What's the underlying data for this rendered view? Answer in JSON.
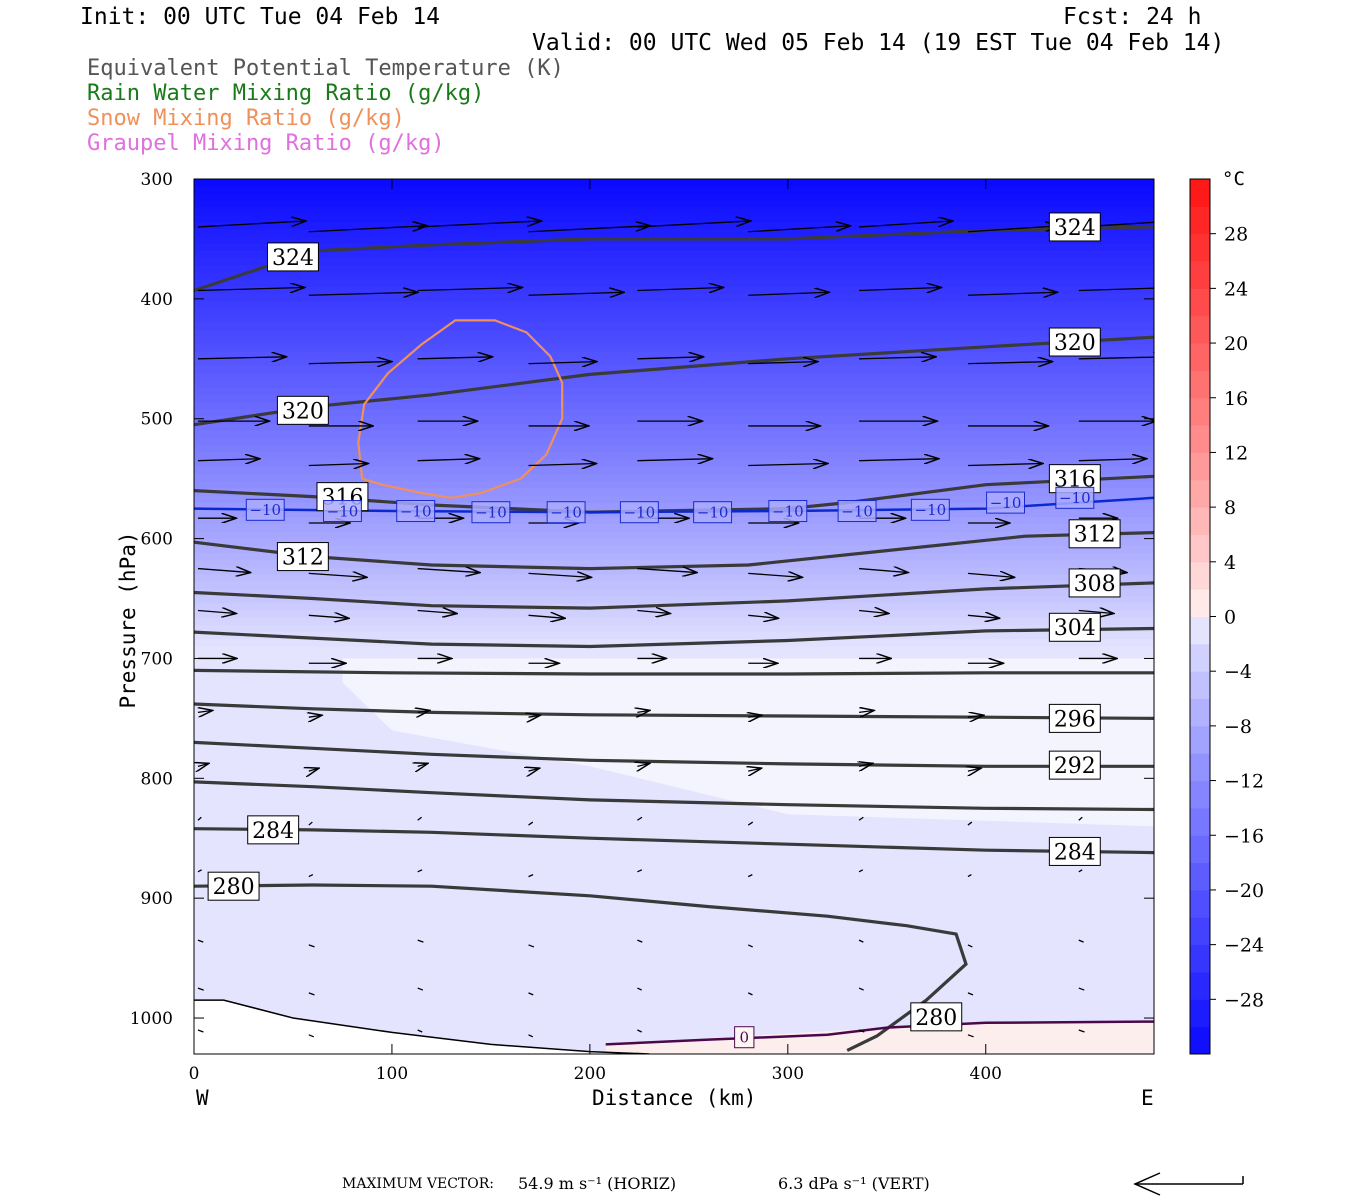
{
  "header": {
    "init": "Init: 00 UTC Tue 04 Feb 14",
    "fcst": "Fcst:   24 h",
    "valid": "Valid: 00 UTC Wed 05 Feb 14 (19 EST Tue 04 Feb 14)"
  },
  "legend": [
    {
      "label": "Equivalent Potential Temperature (K)",
      "color": "#555555"
    },
    {
      "label": "Rain Water Mixing Ratio (g/kg)",
      "color": "#1a7a1a"
    },
    {
      "label": "Snow Mixing Ratio (g/kg)",
      "color": "#f0905a"
    },
    {
      "label": "Graupel Mixing Ratio (g/kg)",
      "color": "#e070e0"
    }
  ],
  "chart_data": {
    "type": "heatmap",
    "xlabel": "Distance (km)",
    "ylabel": "Pressure (hPa)",
    "x_ticks": [
      0,
      100,
      200,
      300,
      400
    ],
    "y_ticks": [
      300,
      400,
      500,
      600,
      700,
      800,
      900,
      1000
    ],
    "xlim": [
      0,
      485
    ],
    "ylim": [
      300,
      1030
    ],
    "direction_labels": {
      "west": "W",
      "east": "E"
    },
    "colorbar": {
      "unit": "°C",
      "ticks": [
        "28",
        "24",
        "20",
        "16",
        "12",
        "8",
        "4",
        "0",
        "−4",
        "−8",
        "−12",
        "−16",
        "−20",
        "−24",
        "−28"
      ],
      "levels": [
        -32,
        -30,
        -28,
        -26,
        -24,
        -22,
        -20,
        -18,
        -16,
        -14,
        -12,
        -10,
        -8,
        -6,
        -4,
        -2,
        0,
        2,
        4,
        6,
        8,
        10,
        12,
        14,
        16,
        18,
        20,
        22,
        24,
        26,
        28,
        30,
        32
      ]
    },
    "theta_e_contours": [
      {
        "value": 324,
        "label": "324",
        "points": [
          [
            0,
            393
          ],
          [
            60,
            360
          ],
          [
            120,
            355
          ],
          [
            200,
            350
          ],
          [
            300,
            350
          ],
          [
            400,
            343
          ],
          [
            485,
            340
          ]
        ]
      },
      {
        "value": 320,
        "label": "320",
        "points": [
          [
            0,
            505
          ],
          [
            60,
            490
          ],
          [
            120,
            480
          ],
          [
            200,
            463
          ],
          [
            300,
            450
          ],
          [
            400,
            440
          ],
          [
            485,
            432
          ]
        ]
      },
      {
        "value": 316,
        "label": "316",
        "points": [
          [
            0,
            560
          ],
          [
            60,
            565
          ],
          [
            120,
            572
          ],
          [
            200,
            578
          ],
          [
            300,
            575
          ],
          [
            330,
            570
          ],
          [
            400,
            555
          ],
          [
            485,
            548
          ]
        ]
      },
      {
        "value": 312,
        "label": "312",
        "points": [
          [
            0,
            603
          ],
          [
            60,
            615
          ],
          [
            120,
            622
          ],
          [
            200,
            625
          ],
          [
            280,
            622
          ],
          [
            350,
            610
          ],
          [
            420,
            598
          ],
          [
            485,
            595
          ]
        ]
      },
      {
        "value": 308,
        "label": "308",
        "points": [
          [
            0,
            645
          ],
          [
            60,
            650
          ],
          [
            120,
            656
          ],
          [
            200,
            658
          ],
          [
            300,
            652
          ],
          [
            400,
            642
          ],
          [
            485,
            637
          ]
        ]
      },
      {
        "value": 304,
        "label": "304",
        "points": [
          [
            0,
            678
          ],
          [
            60,
            683
          ],
          [
            120,
            688
          ],
          [
            200,
            690
          ],
          [
            300,
            685
          ],
          [
            400,
            677
          ],
          [
            485,
            675
          ]
        ]
      },
      {
        "value": 300,
        "label": "",
        "points": [
          [
            0,
            710
          ],
          [
            100,
            712
          ],
          [
            200,
            713
          ],
          [
            300,
            713
          ],
          [
            400,
            712
          ],
          [
            485,
            712
          ]
        ]
      },
      {
        "value": 296,
        "label": "296",
        "points": [
          [
            0,
            738
          ],
          [
            60,
            742
          ],
          [
            120,
            745
          ],
          [
            200,
            747
          ],
          [
            300,
            748
          ],
          [
            400,
            749
          ],
          [
            485,
            750
          ]
        ]
      },
      {
        "value": 292,
        "label": "292",
        "points": [
          [
            0,
            770
          ],
          [
            60,
            775
          ],
          [
            120,
            780
          ],
          [
            200,
            785
          ],
          [
            300,
            788
          ],
          [
            400,
            790
          ],
          [
            485,
            790
          ]
        ]
      },
      {
        "value": 288,
        "label": "",
        "points": [
          [
            0,
            803
          ],
          [
            60,
            807
          ],
          [
            120,
            812
          ],
          [
            200,
            818
          ],
          [
            300,
            822
          ],
          [
            400,
            825
          ],
          [
            485,
            826
          ]
        ]
      },
      {
        "value": 284,
        "label": "284",
        "points": [
          [
            0,
            842
          ],
          [
            60,
            843
          ],
          [
            120,
            845
          ],
          [
            200,
            850
          ],
          [
            300,
            855
          ],
          [
            400,
            860
          ],
          [
            485,
            862
          ]
        ]
      },
      {
        "value": 280,
        "label": "280",
        "points": [
          [
            0,
            890
          ],
          [
            60,
            889
          ],
          [
            120,
            890
          ],
          [
            200,
            898
          ],
          [
            260,
            907
          ],
          [
            320,
            915
          ],
          [
            360,
            923
          ],
          [
            385,
            930
          ],
          [
            390,
            955
          ],
          [
            370,
            985
          ],
          [
            345,
            1015
          ],
          [
            330,
            1027
          ]
        ]
      }
    ],
    "isotherms": [
      {
        "value": -10,
        "label": "−10",
        "points": [
          [
            0,
            575
          ],
          [
            100,
            577
          ],
          [
            200,
            578
          ],
          [
            300,
            577
          ],
          [
            400,
            575
          ],
          [
            485,
            566
          ]
        ]
      },
      {
        "value": 0,
        "label": "0",
        "points": [
          [
            208,
            1022
          ],
          [
            260,
            1018
          ],
          [
            320,
            1014
          ],
          [
            350,
            1008
          ],
          [
            400,
            1004
          ],
          [
            485,
            1003
          ]
        ]
      }
    ],
    "snow_contours": [
      {
        "value": 0.05,
        "points": [
          [
            132,
            418
          ],
          [
            152,
            418
          ],
          [
            168,
            428
          ],
          [
            180,
            448
          ],
          [
            186,
            470
          ],
          [
            186,
            500
          ],
          [
            178,
            530
          ],
          [
            165,
            550
          ],
          [
            145,
            562
          ],
          [
            130,
            566
          ],
          [
            115,
            562
          ],
          [
            95,
            555
          ],
          [
            85,
            550
          ],
          [
            83,
            520
          ],
          [
            86,
            488
          ],
          [
            98,
            462
          ],
          [
            115,
            438
          ]
        ]
      }
    ],
    "surface_contour": {
      "points": [
        [
          0,
          985
        ],
        [
          15,
          985
        ],
        [
          50,
          1000
        ],
        [
          100,
          1012
        ],
        [
          150,
          1022
        ],
        [
          200,
          1028
        ],
        [
          230,
          1030
        ]
      ]
    },
    "wind_max_horiz": "54.9 m s⁻¹",
    "wind_max_vert": "6.3 dPa s⁻¹"
  },
  "footer": {
    "max_vector_label": "MAXIMUM VECTOR:",
    "horiz": "54.9 m s⁻¹ (HORIZ)",
    "vert": "6.3 dPa s⁻¹ (VERT)"
  }
}
